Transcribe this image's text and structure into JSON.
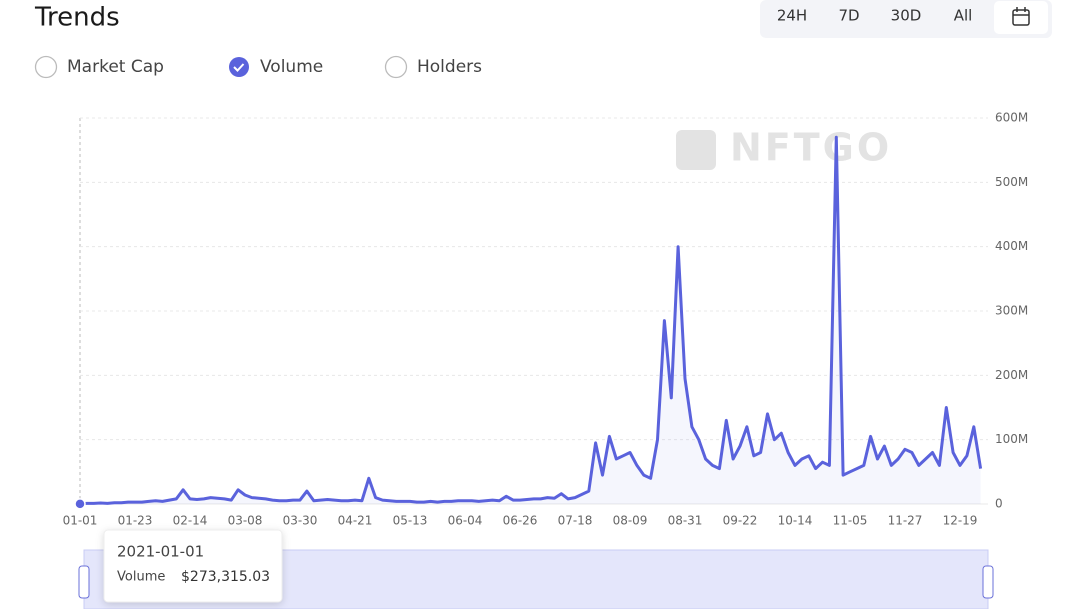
{
  "header": {
    "title": "Trends"
  },
  "ranges": [
    "24H",
    "7D",
    "30D",
    "All"
  ],
  "metrics": [
    {
      "label": "Market Cap",
      "checked": false
    },
    {
      "label": "Volume",
      "checked": true
    },
    {
      "label": "Holders",
      "checked": false
    }
  ],
  "watermark": "NFTGO",
  "tooltip": {
    "date": "2021-01-01",
    "label": "Volume",
    "value": "$273,315.03"
  },
  "chart_data": {
    "type": "line",
    "color": "#5a62dc",
    "grid": true,
    "categories": [
      "01-01",
      null,
      null,
      null,
      null,
      null,
      null,
      null,
      "01-23",
      null,
      null,
      null,
      null,
      null,
      null,
      null,
      "02-14",
      null,
      null,
      null,
      null,
      null,
      null,
      null,
      "03-08",
      null,
      null,
      null,
      null,
      null,
      null,
      null,
      "03-30",
      null,
      null,
      null,
      null,
      null,
      null,
      null,
      "04-21",
      null,
      null,
      null,
      null,
      null,
      null,
      null,
      "05-13",
      null,
      null,
      null,
      null,
      null,
      null,
      null,
      "06-04",
      null,
      null,
      null,
      null,
      null,
      null,
      null,
      "06-26",
      null,
      null,
      null,
      null,
      null,
      null,
      null,
      "07-18",
      null,
      null,
      null,
      null,
      null,
      null,
      null,
      "08-09",
      null,
      null,
      null,
      null,
      null,
      null,
      null,
      "08-31",
      null,
      null,
      null,
      null,
      null,
      null,
      null,
      "09-22",
      null,
      null,
      null,
      null,
      null,
      null,
      null,
      "10-14",
      null,
      null,
      null,
      null,
      null,
      null,
      null,
      "11-05",
      null,
      null,
      null,
      null,
      null,
      null,
      null,
      "11-27",
      null,
      null,
      null,
      null,
      null,
      null,
      null,
      "12-19",
      null,
      null,
      null
    ],
    "values": [
      0.273315,
      1,
      1,
      1.5,
      1,
      2,
      2,
      3,
      3,
      3,
      4,
      5,
      4,
      6,
      8,
      22,
      8,
      7,
      8,
      10,
      9,
      8,
      6,
      22,
      14,
      10,
      9,
      8,
      6,
      5,
      5,
      6,
      6,
      20,
      5,
      6,
      7,
      6,
      5,
      5,
      6,
      5,
      40,
      10,
      6,
      5,
      4,
      4,
      4,
      3,
      3,
      4,
      3,
      4,
      4,
      5,
      5,
      5,
      4,
      5,
      6,
      5,
      12,
      6,
      6,
      7,
      8,
      8,
      10,
      9,
      16,
      8,
      10,
      15,
      20,
      95,
      45,
      105,
      70,
      75,
      80,
      60,
      45,
      40,
      100,
      285,
      165,
      400,
      195,
      120,
      100,
      70,
      60,
      55,
      130,
      70,
      90,
      120,
      75,
      80,
      140,
      100,
      110,
      80,
      60,
      70,
      75,
      55,
      65,
      60,
      570,
      45,
      50,
      55,
      60,
      105,
      70,
      90,
      60,
      70,
      85,
      80,
      60,
      70,
      80,
      60,
      150,
      80,
      60,
      75,
      120,
      55
    ],
    "ylim": [
      0,
      600
    ],
    "yticks": [
      0,
      {
        "value": 100,
        "label": "100M"
      },
      {
        "value": 200,
        "label": "200M"
      },
      {
        "value": 300,
        "label": "300M"
      },
      {
        "value": 400,
        "label": "400M"
      },
      {
        "value": 500,
        "label": "500M"
      },
      {
        "value": 600,
        "label": "600M"
      }
    ]
  }
}
